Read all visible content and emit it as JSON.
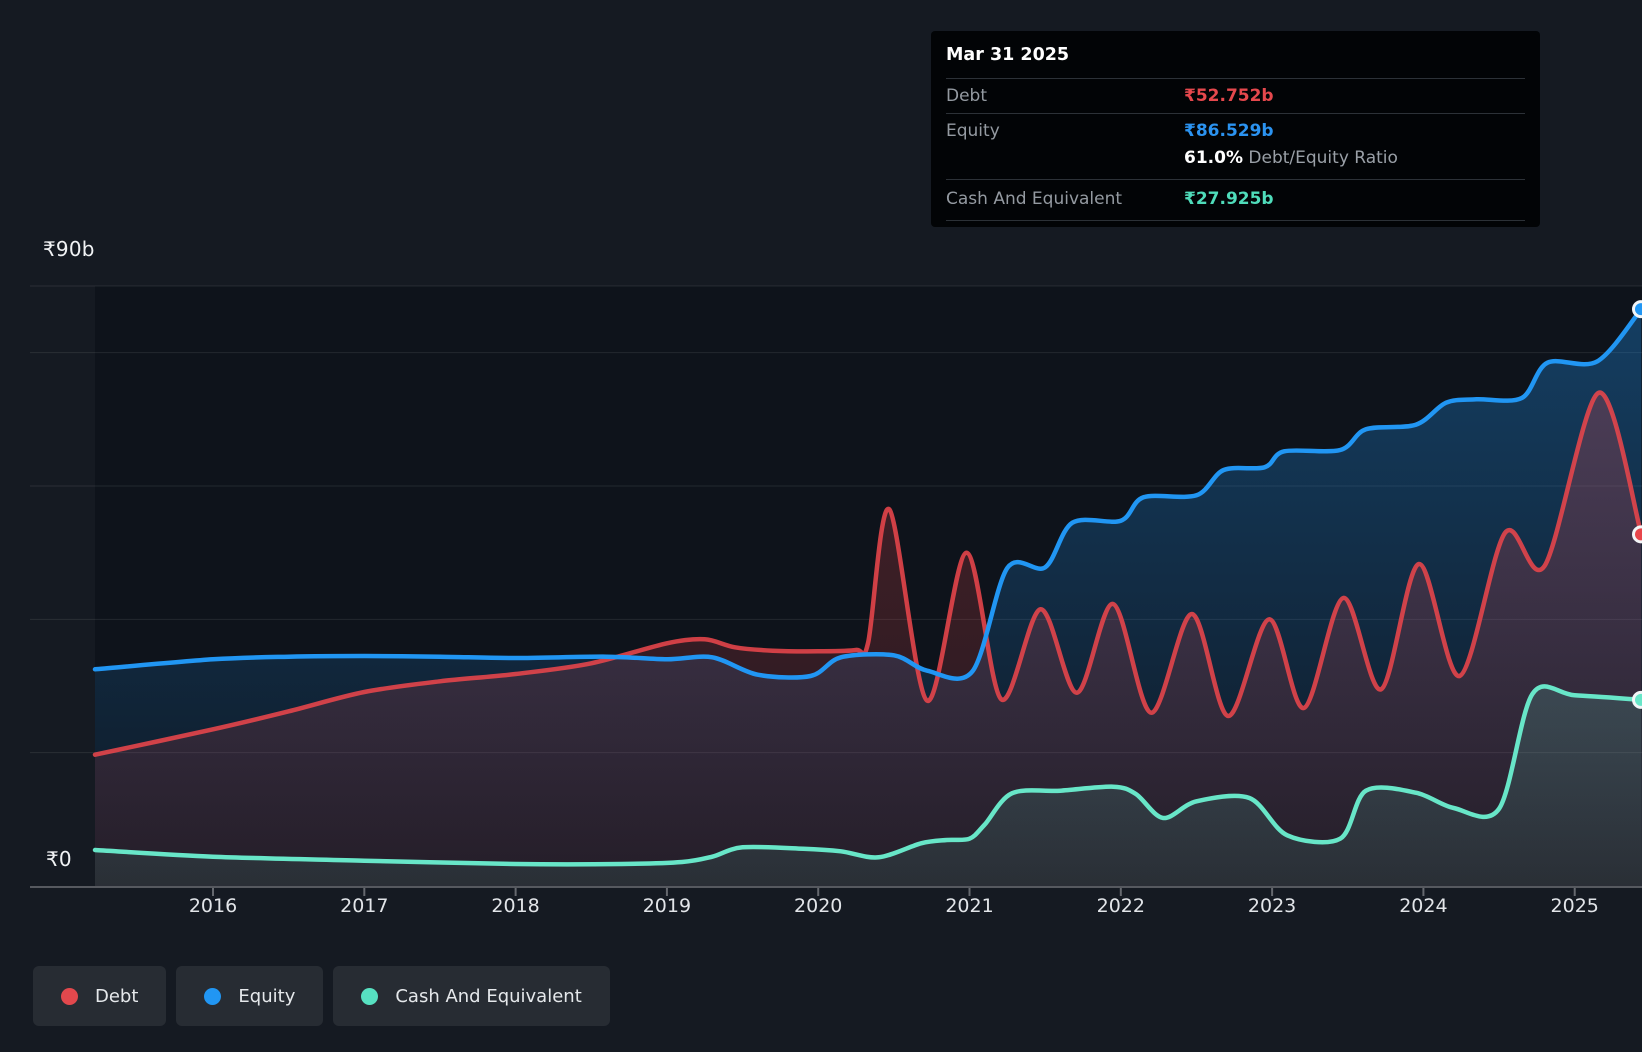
{
  "tooltip": {
    "date": "Mar 31 2025",
    "rows": [
      {
        "id": "debt",
        "label": "Debt",
        "value": "₹52.752b",
        "color": "#e5484d"
      },
      {
        "id": "equity",
        "label": "Equity",
        "value": "₹86.529b",
        "color": "#2b93f0"
      },
      {
        "id": "cash",
        "label": "Cash And Equivalent",
        "value": "₹27.925b",
        "color": "#4fdcba"
      }
    ],
    "ratio": {
      "value": "61.0%",
      "label": "Debt/Equity Ratio"
    }
  },
  "y_axis": {
    "top_label": "₹90b",
    "zero_label": "₹0",
    "unit": "₹ billions"
  },
  "x_axis": {
    "years": [
      "2016",
      "2017",
      "2018",
      "2019",
      "2020",
      "2021",
      "2022",
      "2023",
      "2024",
      "2025"
    ]
  },
  "legend": [
    {
      "label": "Debt",
      "color": "#e2484d"
    },
    {
      "label": "Equity",
      "color": "#2196f3"
    },
    {
      "label": "Cash And Equivalent",
      "color": "#57e1c1"
    }
  ],
  "chart_data": {
    "type": "area",
    "title": "Debt to Equity history (values in ₹ billions, x = decimal year)",
    "ylim": [
      0,
      90
    ],
    "xlim": [
      2015.22,
      2025.45
    ],
    "gridline_values": [
      20,
      40,
      60,
      80,
      90
    ],
    "legend_position": "bottom-left",
    "grid": true,
    "series": [
      {
        "name": "Debt",
        "color": "#e8464b",
        "final_label": "₹52.752b",
        "points": [
          [
            2015.22,
            19.7
          ],
          [
            2016.0,
            23.5
          ],
          [
            2016.5,
            26.2
          ],
          [
            2017.0,
            29.1
          ],
          [
            2017.5,
            30.7
          ],
          [
            2018.0,
            31.8
          ],
          [
            2018.5,
            33.4
          ],
          [
            2019.0,
            36.4
          ],
          [
            2019.25,
            37.0
          ],
          [
            2019.45,
            35.8
          ],
          [
            2019.7,
            35.3
          ],
          [
            2020.0,
            35.2
          ],
          [
            2020.25,
            35.4
          ],
          [
            2020.33,
            36.5
          ],
          [
            2020.47,
            56.5
          ],
          [
            2020.72,
            27.8
          ],
          [
            2020.98,
            50.0
          ],
          [
            2021.21,
            28.0
          ],
          [
            2021.47,
            41.5
          ],
          [
            2021.71,
            29.0
          ],
          [
            2021.95,
            42.3
          ],
          [
            2022.2,
            26.0
          ],
          [
            2022.47,
            40.8
          ],
          [
            2022.71,
            25.5
          ],
          [
            2022.98,
            40.0
          ],
          [
            2023.21,
            26.7
          ],
          [
            2023.47,
            43.2
          ],
          [
            2023.72,
            29.5
          ],
          [
            2023.97,
            48.3
          ],
          [
            2024.24,
            31.5
          ],
          [
            2024.54,
            53.0
          ],
          [
            2024.8,
            48.0
          ],
          [
            2025.16,
            74.0
          ],
          [
            2025.44,
            52.752
          ]
        ]
      },
      {
        "name": "Equity",
        "color": "#2196f3",
        "final_label": "₹86.529b",
        "points": [
          [
            2015.22,
            32.5
          ],
          [
            2016.0,
            34.0
          ],
          [
            2016.5,
            34.4
          ],
          [
            2017.0,
            34.5
          ],
          [
            2017.5,
            34.4
          ],
          [
            2018.0,
            34.2
          ],
          [
            2018.6,
            34.4
          ],
          [
            2019.0,
            34.0
          ],
          [
            2019.3,
            34.3
          ],
          [
            2019.6,
            31.7
          ],
          [
            2019.95,
            31.5
          ],
          [
            2020.15,
            34.3
          ],
          [
            2020.5,
            34.6
          ],
          [
            2020.72,
            32.3
          ],
          [
            2021.02,
            32.2
          ],
          [
            2021.25,
            47.7
          ],
          [
            2021.5,
            47.8
          ],
          [
            2021.68,
            54.5
          ],
          [
            2022.0,
            54.8
          ],
          [
            2022.15,
            58.3
          ],
          [
            2022.5,
            58.6
          ],
          [
            2022.68,
            62.4
          ],
          [
            2022.95,
            62.8
          ],
          [
            2023.08,
            65.2
          ],
          [
            2023.45,
            65.4
          ],
          [
            2023.62,
            68.5
          ],
          [
            2023.95,
            69.2
          ],
          [
            2024.15,
            72.5
          ],
          [
            2024.35,
            73.0
          ],
          [
            2024.65,
            73.2
          ],
          [
            2024.82,
            78.5
          ],
          [
            2025.15,
            78.7
          ],
          [
            2025.44,
            86.529
          ]
        ]
      },
      {
        "name": "Cash And Equivalent",
        "color": "#68e6c8",
        "final_label": "₹27.925b",
        "points": [
          [
            2015.22,
            5.4
          ],
          [
            2016.0,
            4.4
          ],
          [
            2017.0,
            3.8
          ],
          [
            2018.0,
            3.3
          ],
          [
            2018.7,
            3.3
          ],
          [
            2019.1,
            3.6
          ],
          [
            2019.3,
            4.4
          ],
          [
            2019.5,
            5.8
          ],
          [
            2019.9,
            5.6
          ],
          [
            2020.15,
            5.2
          ],
          [
            2020.4,
            4.3
          ],
          [
            2020.68,
            6.4
          ],
          [
            2020.85,
            6.9
          ],
          [
            2021.0,
            7.1
          ],
          [
            2021.1,
            9.2
          ],
          [
            2021.28,
            13.9
          ],
          [
            2021.6,
            14.3
          ],
          [
            2021.95,
            14.9
          ],
          [
            2022.1,
            13.8
          ],
          [
            2022.28,
            10.2
          ],
          [
            2022.5,
            12.7
          ],
          [
            2022.85,
            13.2
          ],
          [
            2023.1,
            7.6
          ],
          [
            2023.45,
            7.1
          ],
          [
            2023.62,
            14.3
          ],
          [
            2023.95,
            14.0
          ],
          [
            2024.2,
            11.7
          ],
          [
            2024.5,
            11.6
          ],
          [
            2024.72,
            28.8
          ],
          [
            2025.0,
            28.6
          ],
          [
            2025.44,
            27.925
          ]
        ]
      }
    ]
  }
}
